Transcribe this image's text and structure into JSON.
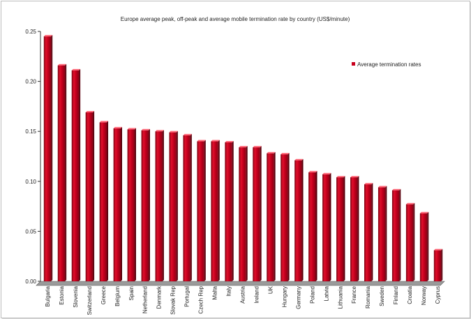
{
  "chart_data": {
    "type": "bar",
    "title": "Europe average peak, off-peak and average mobile termination rate by country (US$/minute)",
    "xlabel": "",
    "ylabel": "",
    "ylim": [
      0,
      0.25
    ],
    "yticks": [
      "0.00",
      "0.05",
      "0.10",
      "0.15",
      "0.20",
      "0.25"
    ],
    "legend_position": "top-right",
    "grid": false,
    "bar_color": "#c8001e",
    "categories": [
      "Bulgaria",
      "Estonia",
      "Slovenia",
      "Switzerland",
      "Greece",
      "Belgium",
      "Spain",
      "Netherland",
      "Denmark",
      "Slovak Rep",
      "Portugal",
      "Czech Rep",
      "Malta",
      "Italy",
      "Austria",
      "Ireland",
      "UK",
      "Hungary",
      "Germany",
      "Poland",
      "Latvia",
      "Lithuania",
      "France",
      "Romania",
      "Sweden",
      "Finland",
      "Croatia",
      "Norway",
      "Cyprus"
    ],
    "series": [
      {
        "name": "Average termination rates",
        "values": [
          0.245,
          0.216,
          0.211,
          0.169,
          0.159,
          0.153,
          0.152,
          0.151,
          0.15,
          0.149,
          0.146,
          0.14,
          0.14,
          0.139,
          0.134,
          0.134,
          0.128,
          0.127,
          0.121,
          0.109,
          0.107,
          0.104,
          0.104,
          0.097,
          0.094,
          0.091,
          0.077,
          0.068,
          0.031
        ]
      }
    ]
  }
}
